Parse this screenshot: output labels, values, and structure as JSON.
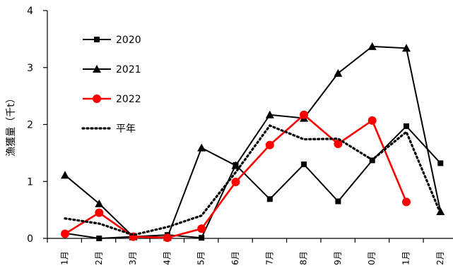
{
  "chart_data": {
    "type": "line",
    "ylabel": "漁獲量（千t）",
    "ylim": [
      0,
      4
    ],
    "yticks": [
      "0",
      "1",
      "2",
      "3",
      "4"
    ],
    "categories": [
      "1月",
      "2月",
      "3月",
      "4月",
      "5月",
      "6月",
      "7月",
      "8月",
      "9月",
      "0月",
      "1月",
      "2月"
    ],
    "grid": false,
    "legend_position": "top-left",
    "series": [
      {
        "name": "2020",
        "color": "#000000",
        "marker": "square",
        "style": "solid",
        "values": [
          0.09,
          0.0,
          0.03,
          0.06,
          0.01,
          1.29,
          0.69,
          1.3,
          0.65,
          1.37,
          1.97,
          1.32
        ]
      },
      {
        "name": "2021",
        "color": "#000000",
        "marker": "triangle",
        "style": "solid",
        "values": [
          1.11,
          0.61,
          0.03,
          0.02,
          1.59,
          1.28,
          2.17,
          2.11,
          2.9,
          3.37,
          3.34,
          0.47
        ]
      },
      {
        "name": "2022",
        "color": "#ff0000",
        "marker": "circle",
        "style": "solid",
        "values": [
          0.08,
          0.45,
          0.03,
          0.01,
          0.17,
          0.99,
          1.64,
          2.17,
          1.66,
          2.07,
          0.64,
          null
        ]
      },
      {
        "name": "平年",
        "color": "#000000",
        "marker": "none",
        "style": "dotted",
        "values": [
          0.35,
          0.26,
          0.06,
          0.2,
          0.4,
          1.16,
          1.98,
          1.74,
          1.75,
          1.38,
          1.87,
          0.44
        ]
      }
    ]
  }
}
